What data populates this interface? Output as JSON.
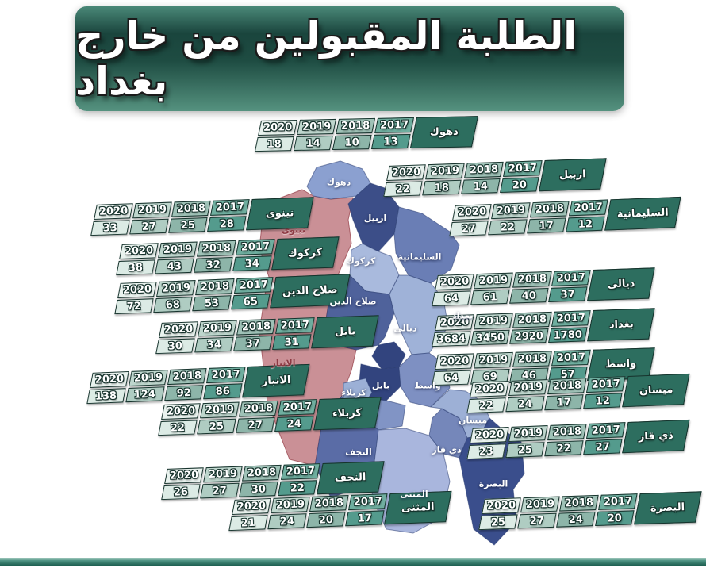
{
  "title": "الطلبة المقبولين من خارج بغداد",
  "chart_data": {
    "type": "table",
    "title": "الطلبة المقبولين من خارج بغداد",
    "columns": [
      "2020",
      "2019",
      "2018",
      "2017"
    ],
    "rows": [
      {
        "name": "دهوك",
        "values": [
          18,
          14,
          10,
          13
        ]
      },
      {
        "name": "اربيل",
        "values": [
          22,
          18,
          14,
          20
        ]
      },
      {
        "name": "السليمانية",
        "values": [
          27,
          22,
          17,
          12
        ]
      },
      {
        "name": "نينوى",
        "values": [
          33,
          27,
          25,
          28
        ]
      },
      {
        "name": "كركوك",
        "values": [
          38,
          43,
          32,
          34
        ]
      },
      {
        "name": "صلاح الدين",
        "values": [
          72,
          68,
          53,
          65
        ]
      },
      {
        "name": "ديالى",
        "values": [
          64,
          61,
          40,
          37
        ]
      },
      {
        "name": "بغداد",
        "values": [
          3684,
          3450,
          2920,
          1780
        ]
      },
      {
        "name": "واسط",
        "values": [
          64,
          69,
          46,
          57
        ]
      },
      {
        "name": "بابل",
        "values": [
          30,
          34,
          37,
          31
        ]
      },
      {
        "name": "الانبار",
        "values": [
          138,
          124,
          92,
          86
        ]
      },
      {
        "name": "كربلاء",
        "values": [
          22,
          25,
          27,
          24
        ]
      },
      {
        "name": "ميسان",
        "values": [
          22,
          24,
          17,
          12
        ]
      },
      {
        "name": "ذي قار",
        "values": [
          23,
          25,
          22,
          27
        ]
      },
      {
        "name": "النجف",
        "values": [
          26,
          27,
          30,
          22
        ]
      },
      {
        "name": "المثنى",
        "values": [
          21,
          24,
          20,
          17
        ]
      },
      {
        "name": "البصرة",
        "values": [
          25,
          27,
          24,
          20
        ]
      }
    ]
  },
  "table_palette": {
    "year_headers": [
      "#e9f2ee",
      "#bed6cd",
      "#9fc2b7",
      "#6fae9f"
    ],
    "values": [
      "#dcebe5",
      "#afccc2",
      "#8db5a9",
      "#549b8d"
    ],
    "name_cell": "#2d6e5f",
    "cell_border": "#17332d"
  },
  "map": {
    "fills": {
      "duhok": "#8ba0d0",
      "nineveh": "#ca9096",
      "erbil": "#3c4e88",
      "sulaymaniyah": "#6a7eb5",
      "kirkuk": "#a9badd",
      "salahaldin": "#4f629b",
      "diyala": "#9fb2d8",
      "baghdad": "#32447e",
      "anbar": "#ca9096",
      "karbala": "#9cb0d6",
      "babil": "#32447e",
      "wasit": "#7e90c2",
      "qadisiyah": "#8194c5",
      "najaf": "#5a6ca6",
      "muthanna": "#a9b6dd",
      "dhiqar": "#7587ba",
      "maysan": "#9db0d6",
      "basra": "#3a4e8c"
    },
    "label_colors": {
      "default": "#ffffff",
      "pink_region": "#8d3a43"
    }
  },
  "banner_colors": {
    "top": "#4a8878",
    "dark": "#1a453d",
    "bottom": "#55927f"
  },
  "footer_color": "#2f7a68"
}
